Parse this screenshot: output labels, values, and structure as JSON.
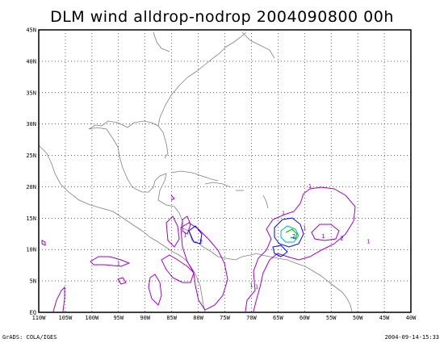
{
  "title": "DLM wind alldrop-nodrop 2004090800 00h",
  "footer": {
    "left": "GrADS: COLA/IGES",
    "right": "2004-09-14-15:33"
  },
  "map": {
    "lon_range": [
      -110,
      -40
    ],
    "lat_range": [
      0,
      45
    ],
    "x_ticks": [
      "110W",
      "105W",
      "100W",
      "95W",
      "90W",
      "85W",
      "80W",
      "75W",
      "70W",
      "65W",
      "60W",
      "55W",
      "50W",
      "45W",
      "40W"
    ],
    "y_ticks": [
      "EQ",
      "5N",
      "10N",
      "15N",
      "20N",
      "25N",
      "30N",
      "35N",
      "40N",
      "45N"
    ],
    "grid": true
  },
  "colors": {
    "contour_1": "#a000c8",
    "contour_2": "#0000ff",
    "contour_3": "#00b4b4",
    "contour_4": "#00c800",
    "coast": "#808080"
  },
  "contour_labels": [
    {
      "text": "1",
      "lon": -95.0,
      "lat": 7.5
    },
    {
      "text": "1",
      "lon": -82.5,
      "lat": 12.0
    },
    {
      "text": "1",
      "lon": -69.0,
      "lat": 3.8
    },
    {
      "text": "1",
      "lon": -64.0,
      "lat": 15.5
    },
    {
      "text": "1",
      "lon": -60.0,
      "lat": 13.2
    },
    {
      "text": "1",
      "lon": -59.0,
      "lat": 19.8
    },
    {
      "text": "1",
      "lon": -56.5,
      "lat": 11.8
    },
    {
      "text": "2",
      "lon": -79.5,
      "lat": 11.0
    },
    {
      "text": "2",
      "lon": -62.0,
      "lat": 11.8
    },
    {
      "text": "2",
      "lon": -53.0,
      "lat": 11.5
    },
    {
      "text": "1",
      "lon": -70.0,
      "lat": 4.0
    },
    {
      "text": "1",
      "lon": -48.0,
      "lat": 11.0
    }
  ]
}
